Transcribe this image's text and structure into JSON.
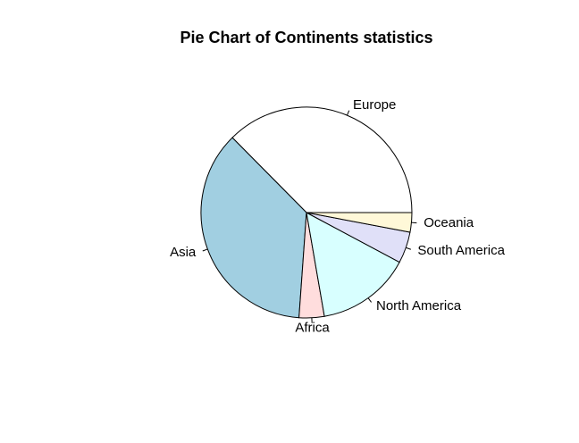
{
  "chart_data": {
    "type": "pie",
    "title": "Pie Chart of Continents statistics",
    "start_angle_deg": 0,
    "direction": "counterclockwise",
    "slices": [
      {
        "label": "Europe",
        "value": 0.388,
        "color": "#ffffff"
      },
      {
        "label": "Asia",
        "value": 0.378,
        "color": "#a1cfe1"
      },
      {
        "label": "Africa",
        "value": 0.04,
        "color": "#ffdddd"
      },
      {
        "label": "North America",
        "value": 0.15,
        "color": "#d8ffff"
      },
      {
        "label": "South America",
        "value": 0.05,
        "color": "#e0e0f8"
      },
      {
        "label": "Oceania",
        "value": 0.031,
        "color": "#fff8d8"
      }
    ]
  }
}
